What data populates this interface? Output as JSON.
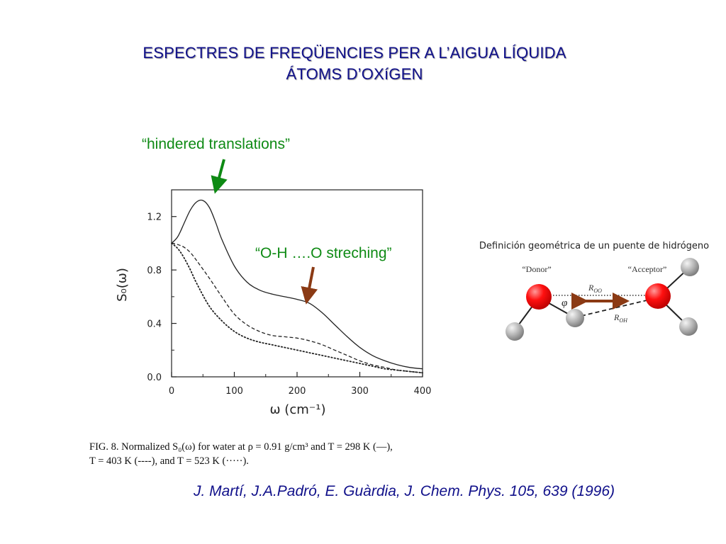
{
  "title": {
    "line1": "ESPECTRES DE FREQÜENCIES PER A L’AIGUA LÍQUIDA",
    "line2": "ÁTOMS D’OXíGEN"
  },
  "annotations": {
    "hindered": "“hindered translations”",
    "oh": "“O-H ….O streching”"
  },
  "chart_data": {
    "type": "line",
    "xlabel": "ω  (cm⁻¹)",
    "ylabel": "S₀(ω)",
    "xlim": [
      0,
      400
    ],
    "ylim": [
      0,
      1.4
    ],
    "x_ticks": [
      "0",
      "100",
      "200",
      "300",
      "400"
    ],
    "y_ticks": [
      "0.0",
      "0.4",
      "0.8",
      "1.2"
    ],
    "grid": false,
    "series": [
      {
        "style": "solid",
        "x": [
          0,
          10,
          20,
          30,
          40,
          50,
          60,
          70,
          80,
          100,
          120,
          140,
          160,
          180,
          200,
          220,
          240,
          260,
          280,
          300,
          320,
          340,
          360,
          380,
          400
        ],
        "y": [
          1.0,
          1.05,
          1.15,
          1.25,
          1.31,
          1.32,
          1.27,
          1.16,
          1.03,
          0.83,
          0.71,
          0.65,
          0.62,
          0.6,
          0.58,
          0.55,
          0.48,
          0.39,
          0.3,
          0.22,
          0.16,
          0.12,
          0.09,
          0.07,
          0.06
        ]
      },
      {
        "style": "dashed",
        "x": [
          0,
          10,
          20,
          30,
          40,
          60,
          80,
          100,
          120,
          140,
          160,
          180,
          200,
          220,
          240,
          260,
          280,
          300,
          320,
          340,
          360,
          380,
          400
        ],
        "y": [
          1.0,
          0.99,
          0.97,
          0.93,
          0.87,
          0.74,
          0.6,
          0.47,
          0.39,
          0.34,
          0.31,
          0.3,
          0.29,
          0.27,
          0.24,
          0.2,
          0.16,
          0.12,
          0.09,
          0.07,
          0.05,
          0.04,
          0.03
        ]
      },
      {
        "style": "dotted",
        "x": [
          0,
          10,
          20,
          30,
          40,
          60,
          80,
          100,
          120,
          140,
          160,
          180,
          200,
          220,
          240,
          260,
          280,
          300,
          320,
          340,
          360,
          380,
          400
        ],
        "y": [
          1.0,
          0.96,
          0.89,
          0.8,
          0.7,
          0.53,
          0.42,
          0.34,
          0.29,
          0.26,
          0.24,
          0.22,
          0.2,
          0.18,
          0.16,
          0.14,
          0.12,
          0.1,
          0.08,
          0.06,
          0.05,
          0.04,
          0.03
        ]
      }
    ]
  },
  "caption": {
    "line1": "FIG. 8.  Normalized S₀(ω) for water at ρ = 0.91 g/cm³ and T = 298 K (—),",
    "line2": "T = 403 K (----), and T = 523 K (·····)."
  },
  "diagram": {
    "title": "Definición geométrica de un puente de hidrógeno",
    "donor": "“Donor”",
    "acceptor": "“Acceptor”",
    "roo": "R",
    "roo_sub": "OO",
    "roh": "R",
    "roh_sub": "OH",
    "phi": "φ"
  },
  "citation": "J. Martí, J.A.Padró, E. Guàrdia, J. Chem. Phys. 105, 639 (1996)",
  "colors": {
    "title": "#10108a",
    "annotation": "#0e8a14",
    "oxygen": "#ff0000",
    "hydrogen": "#b0b0b0",
    "green_arrow": "#0e8a14",
    "brown_arrow": "#8b3a14"
  }
}
